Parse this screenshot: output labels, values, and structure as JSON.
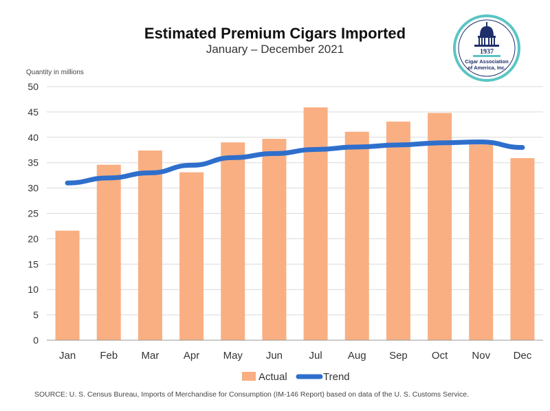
{
  "colors": {
    "bar": "#F9AF82",
    "trend": "#2F6FCC",
    "grid": "#D9D9D9",
    "axis": "#999999",
    "logo_ring": "#59C5C3",
    "logo_text": "#1E2F6B"
  },
  "logo": {
    "year": "1937",
    "line1": "Cigar Association",
    "line2": "of America, Inc."
  },
  "source": "SOURCE: U. S. Census Bureau, Imports of Merchandise for Consumption (IM-146 Report) based on data of the U. S. Customs Service.",
  "chart_data": {
    "type": "bar",
    "title": "Estimated Premium Cigars Imported",
    "subtitle": "January – December 2021",
    "ylabel": "Quantity in millions",
    "xlabel": "",
    "ylim": [
      0,
      50
    ],
    "yticks": [
      0,
      5,
      10,
      15,
      20,
      25,
      30,
      35,
      40,
      45,
      50
    ],
    "grid": true,
    "legend_position": "bottom",
    "categories": [
      "Jan",
      "Feb",
      "Mar",
      "Apr",
      "May",
      "Jun",
      "Jul",
      "Aug",
      "Sep",
      "Oct",
      "Nov",
      "Dec"
    ],
    "series": [
      {
        "name": "Actual",
        "type": "bar",
        "values": [
          21.6,
          34.6,
          37.4,
          33.1,
          39.0,
          39.7,
          45.9,
          41.1,
          43.1,
          44.8,
          38.6,
          35.9
        ]
      },
      {
        "name": "Trend",
        "type": "line",
        "values": [
          31.0,
          32.0,
          33.0,
          34.5,
          36.0,
          36.8,
          37.6,
          38.1,
          38.5,
          38.9,
          39.1,
          38.0
        ]
      }
    ]
  }
}
